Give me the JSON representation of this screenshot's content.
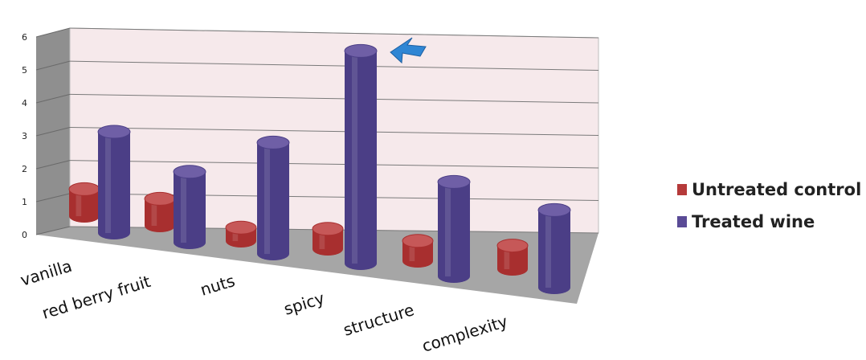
{
  "chart_data": {
    "type": "bar",
    "categories": [
      "vanilla",
      "red berry fruit",
      "nuts",
      "spicy",
      "structure",
      "complexity"
    ],
    "series": [
      {
        "name": "Untreated control",
        "values": [
          0.8,
          0.8,
          0.4,
          0.6,
          0.6,
          0.7
        ]
      },
      {
        "name": "Treated wine",
        "values": [
          3.0,
          2.1,
          3.3,
          6.3,
          2.8,
          2.3
        ]
      }
    ],
    "ylim": [
      0,
      6
    ],
    "yticks": [
      "0",
      "1",
      "2",
      "3",
      "4",
      "5",
      "6"
    ],
    "grid": true,
    "legend_position": "right",
    "annotation": "arrow pointing at spicy treated wine bar",
    "colors": {
      "untreated_top": "#c65858",
      "untreated_side": "#a82f2f",
      "treated_top": "#6f5fa6",
      "treated_side": "#4b3e86",
      "back_wall": "#f6e9eb",
      "floor": "#a6a6a6",
      "side_wall": "#8c8c8c",
      "arrow": "#2f86d4"
    }
  },
  "legend": [
    {
      "label": "Untreated control",
      "color": "#b53a3a"
    },
    {
      "label": "Treated wine",
      "color": "#5a4b96"
    }
  ]
}
